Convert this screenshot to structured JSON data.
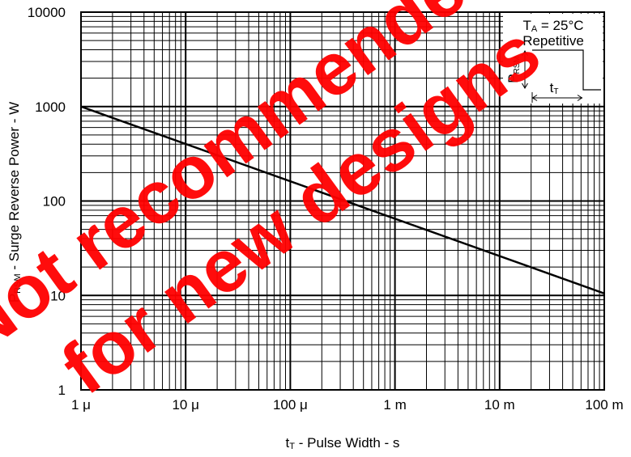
{
  "chart_data": {
    "type": "line",
    "x_scale": "log",
    "y_scale": "log",
    "xlim": [
      1e-06,
      0.1
    ],
    "ylim": [
      1,
      10000
    ],
    "grid": true,
    "x_tick_values": [
      1e-06,
      1e-05,
      0.0001,
      0.001,
      0.01,
      0.1
    ],
    "x_tick_labels": [
      "1 μ",
      "10 μ",
      "100 μ",
      "1 m",
      "10 m",
      "100 m"
    ],
    "y_tick_values": [
      1,
      10,
      100,
      1000,
      10000
    ],
    "y_tick_labels": [
      "1",
      "10",
      "100",
      "1000",
      "10000"
    ],
    "xlabel": {
      "main": "t",
      "sub": "T",
      "rest": " - Pulse Width - s"
    },
    "ylabel": {
      "main": "P",
      "sub": "RSM",
      "rest": " - Surge Reverse Power - W"
    },
    "series": [
      {
        "x": [
          1e-06,
          0.1
        ],
        "y": [
          1000,
          10.5
        ]
      }
    ],
    "annotation": {
      "line1": {
        "main": "T",
        "sub": "A",
        "rest": " = 25°C"
      },
      "line2": "Repetitive",
      "pulse_p": {
        "main": "P",
        "sub": "RSM"
      },
      "pulse_t": {
        "main": "t",
        "sub": "T"
      }
    },
    "watermark": [
      "Not recommended",
      "for new designs"
    ],
    "colors": {
      "line": "#000000",
      "grid": "#000000",
      "watermark": "#ff0000"
    }
  }
}
